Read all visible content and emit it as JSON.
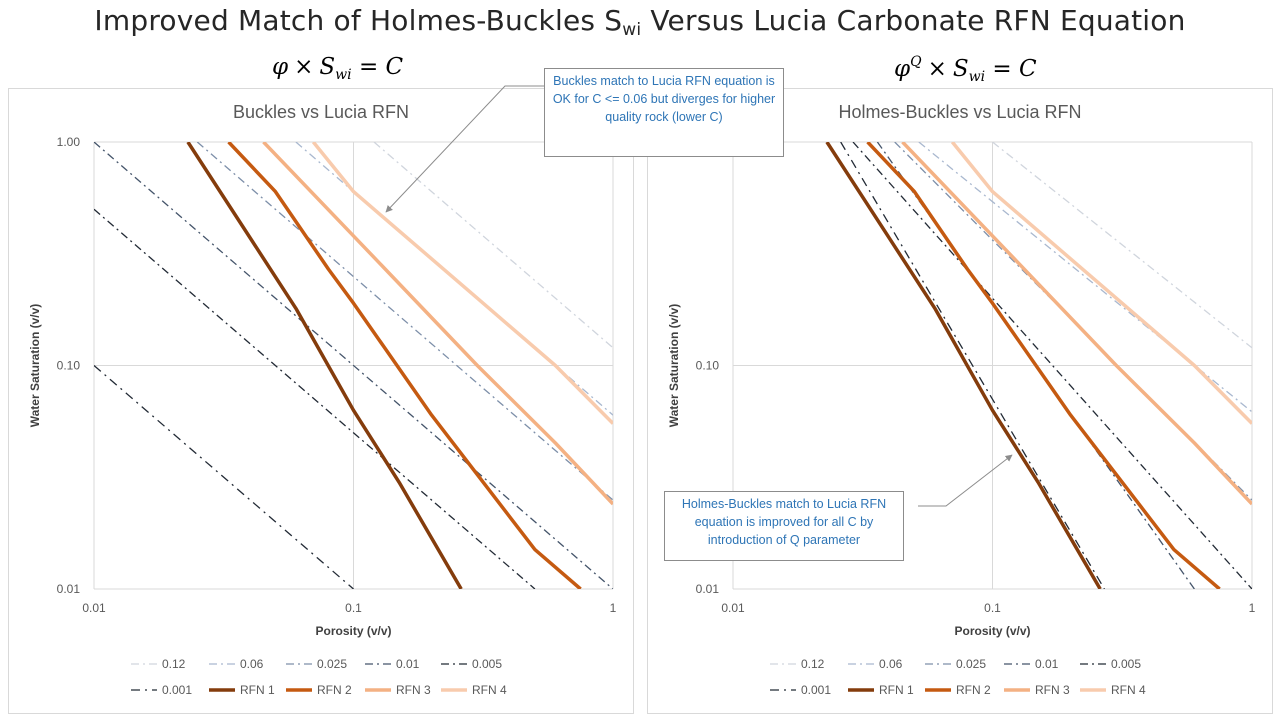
{
  "page": {
    "title_main": "Improved Match of Holmes-Buckles S",
    "title_sub": "wi",
    "title_rest": " Versus Lucia Carbonate RFN Equation",
    "eq_left": {
      "phi": "φ",
      "op": "×",
      "s": "S",
      "sub": "wi",
      "eq": "= C"
    },
    "eq_right": {
      "phi": "φ",
      "sup": "Q",
      "op": "×",
      "s": "S",
      "sub": "wi",
      "eq": "= C"
    },
    "callout_left": "Buckles match to Lucia RFN equation is OK for C <= 0.06 but diverges for higher quality rock (lower C)",
    "callout_right": "Holmes-Buckles match to Lucia RFN equation is improved for all C by introduction of Q parameter"
  },
  "colors": {
    "c012": "#d0d5dd",
    "c006": "#a9b8cf",
    "c0025": "#7d8fa9",
    "c001": "#44546a",
    "c0005": "#222a35",
    "c0001": "#222a35",
    "rfn1": "#843c0c",
    "rfn2": "#c55a11",
    "rfn3": "#f4b183",
    "rfn4": "#f8cbad",
    "callout_text": "#2e75b6"
  },
  "chart_data": [
    {
      "type": "line",
      "title": "Buckles vs Lucia RFN",
      "xlabel": "Porosity (v/v)",
      "ylabel": "Water Saturation (v/v)",
      "xscale": "log",
      "yscale": "log",
      "xlim": [
        0.01,
        1
      ],
      "ylim": [
        0.01,
        1
      ],
      "xticks": [
        "0.01",
        "0.1",
        "1"
      ],
      "yticks": [
        "0.01",
        "0.10",
        "1.00"
      ],
      "grid": true,
      "legend": "bottom",
      "series": [
        {
          "name": "0.12",
          "style": "dashdot",
          "color": "#d0d5dd",
          "x": [
            0.12,
            1
          ],
          "y": [
            1,
            0.12
          ]
        },
        {
          "name": "0.06",
          "style": "dashdot",
          "color": "#a9b8cf",
          "x": [
            0.06,
            1
          ],
          "y": [
            1,
            0.06
          ]
        },
        {
          "name": "0.025",
          "style": "dashdot",
          "color": "#7d8fa9",
          "x": [
            0.025,
            1
          ],
          "y": [
            1,
            0.025
          ]
        },
        {
          "name": "0.01",
          "style": "dashdot",
          "color": "#44546a",
          "x": [
            0.01,
            1
          ],
          "y": [
            1,
            0.01
          ]
        },
        {
          "name": "0.005",
          "style": "dashdot",
          "color": "#222a35",
          "x": [
            0.01,
            0.5
          ],
          "y": [
            0.5,
            0.01
          ]
        },
        {
          "name": "0.001",
          "style": "dashdot",
          "color": "#222a35",
          "x": [
            0.01,
            0.1
          ],
          "y": [
            0.1,
            0.01
          ]
        },
        {
          "name": "RFN 1",
          "style": "solid",
          "color": "#843c0c",
          "x": [
            0.023,
            0.06,
            0.1,
            0.15,
            0.26
          ],
          "y": [
            1,
            0.18,
            0.063,
            0.03,
            0.01
          ]
        },
        {
          "name": "RFN 2",
          "style": "solid",
          "color": "#c55a11",
          "x": [
            0.033,
            0.05,
            0.08,
            0.1,
            0.2,
            0.5,
            0.75
          ],
          "y": [
            1,
            0.6,
            0.27,
            0.19,
            0.06,
            0.015,
            0.01
          ]
        },
        {
          "name": "RFN 3",
          "style": "solid",
          "color": "#f4b183",
          "x": [
            0.045,
            0.1,
            0.3,
            0.6,
            1
          ],
          "y": [
            1,
            0.38,
            0.1,
            0.045,
            0.024
          ]
        },
        {
          "name": "RFN 4",
          "style": "solid",
          "color": "#f8cbad",
          "x": [
            0.07,
            0.1,
            0.3,
            0.6,
            1
          ],
          "y": [
            1,
            0.6,
            0.2,
            0.1,
            0.055
          ]
        }
      ]
    },
    {
      "type": "line",
      "title": "Holmes-Buckles vs Lucia RFN",
      "xlabel": "Porosity (v/v)",
      "ylabel": "Water Saturation (v/v)",
      "xscale": "log",
      "yscale": "log",
      "xlim": [
        0.01,
        1
      ],
      "ylim": [
        0.01,
        1
      ],
      "xticks": [
        "0.01",
        "0.1",
        "1"
      ],
      "yticks": [
        "0.01",
        "0.10",
        "1.00"
      ],
      "grid": true,
      "legend": "bottom",
      "series": [
        {
          "name": "0.12",
          "style": "dashdot",
          "color": "#d0d5dd",
          "x": [
            0.1,
            1
          ],
          "y": [
            1,
            0.12
          ]
        },
        {
          "name": "0.06",
          "style": "dashdot",
          "color": "#a9b8cf",
          "x": [
            0.052,
            1
          ],
          "y": [
            1,
            0.062
          ]
        },
        {
          "name": "0.025",
          "style": "dashdot",
          "color": "#7d8fa9",
          "x": [
            0.042,
            1
          ],
          "y": [
            1,
            0.025
          ]
        },
        {
          "name": "0.01",
          "style": "dashdot",
          "color": "#44546a",
          "x": [
            0.036,
            0.6
          ],
          "y": [
            1,
            0.01
          ]
        },
        {
          "name": "0.005",
          "style": "dashdot",
          "color": "#222a35",
          "x": [
            0.029,
            1
          ],
          "y": [
            1,
            0.01
          ]
        },
        {
          "name": "0.001",
          "style": "dashdot",
          "color": "#222a35",
          "x": [
            0.026,
            0.27
          ],
          "y": [
            1,
            0.01
          ]
        },
        {
          "name": "RFN 1",
          "style": "solid",
          "color": "#843c0c",
          "x": [
            0.023,
            0.06,
            0.1,
            0.15,
            0.26
          ],
          "y": [
            1,
            0.18,
            0.063,
            0.03,
            0.01
          ]
        },
        {
          "name": "RFN 2",
          "style": "solid",
          "color": "#c55a11",
          "x": [
            0.033,
            0.05,
            0.08,
            0.1,
            0.2,
            0.5,
            0.75
          ],
          "y": [
            1,
            0.6,
            0.27,
            0.19,
            0.06,
            0.015,
            0.01
          ]
        },
        {
          "name": "RFN 3",
          "style": "solid",
          "color": "#f4b183",
          "x": [
            0.045,
            0.1,
            0.3,
            0.6,
            1
          ],
          "y": [
            1,
            0.38,
            0.1,
            0.045,
            0.024
          ]
        },
        {
          "name": "RFN 4",
          "style": "solid",
          "color": "#f8cbad",
          "x": [
            0.07,
            0.1,
            0.3,
            0.6,
            1
          ],
          "y": [
            1,
            0.6,
            0.2,
            0.1,
            0.055
          ]
        }
      ]
    }
  ]
}
